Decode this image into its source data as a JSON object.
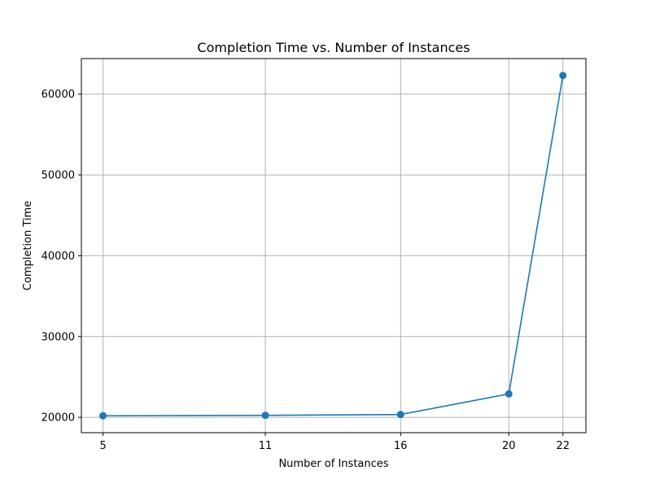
{
  "chart_data": {
    "type": "line",
    "title": "Completion Time vs. Number of Instances",
    "xlabel": "Number of Instances",
    "ylabel": "Completion Time",
    "x": [
      5,
      11,
      16,
      20,
      22
    ],
    "series": [
      {
        "values": [
          20200,
          20250,
          20350,
          22900,
          62300
        ]
      }
    ],
    "xticks": [
      5,
      11,
      16,
      20,
      22
    ],
    "yticks": [
      20000,
      30000,
      40000,
      50000,
      60000
    ],
    "xlim": [
      4.2,
      22.85
    ],
    "ylim": [
      18100,
      64400
    ],
    "grid": true,
    "marker": "circle",
    "color": "#1f77b4"
  }
}
